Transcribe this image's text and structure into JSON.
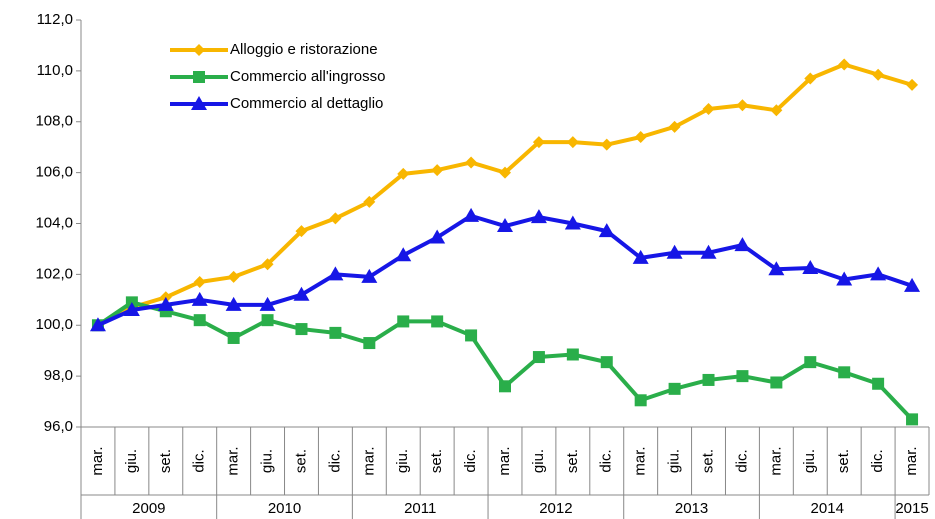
{
  "chart_data": {
    "type": "line",
    "categories": [
      "mar.",
      "giu.",
      "set.",
      "dic.",
      "mar.",
      "giu.",
      "set.",
      "dic.",
      "mar.",
      "giu.",
      "set.",
      "dic.",
      "mar.",
      "giu.",
      "set.",
      "dic.",
      "mar.",
      "giu.",
      "set.",
      "dic.",
      "mar.",
      "giu.",
      "set.",
      "dic.",
      "mar."
    ],
    "years": [
      "2009",
      "2009",
      "2009",
      "2009",
      "2010",
      "2010",
      "2010",
      "2010",
      "2011",
      "2011",
      "2011",
      "2011",
      "2012",
      "2012",
      "2012",
      "2012",
      "2013",
      "2013",
      "2013",
      "2013",
      "2014",
      "2014",
      "2014",
      "2014",
      "2015"
    ],
    "series": [
      {
        "name": "Alloggio e ristorazione",
        "color": "#f8b600",
        "marker": "diamond",
        "values": [
          100.0,
          100.7,
          101.1,
          101.7,
          101.9,
          102.4,
          103.7,
          104.2,
          104.85,
          105.95,
          106.1,
          106.4,
          106.0,
          107.2,
          107.2,
          107.1,
          107.4,
          107.8,
          108.5,
          108.65,
          108.45,
          109.7,
          110.25,
          109.85,
          109.45
        ]
      },
      {
        "name": "Commercio all'ingrosso",
        "color": "#2aae4a",
        "marker": "square",
        "values": [
          100.0,
          100.9,
          100.55,
          100.2,
          99.5,
          100.2,
          99.85,
          99.7,
          99.3,
          100.15,
          100.15,
          99.6,
          97.6,
          98.75,
          98.85,
          98.55,
          97.05,
          97.5,
          97.85,
          98.0,
          97.75,
          98.55,
          98.15,
          97.7,
          96.3
        ]
      },
      {
        "name": "Commercio al dettaglio",
        "color": "#1616e6",
        "marker": "triangle",
        "values": [
          100.0,
          100.6,
          100.8,
          101.0,
          100.8,
          100.8,
          101.2,
          102.0,
          101.9,
          102.75,
          103.45,
          104.3,
          103.9,
          104.25,
          104.0,
          103.7,
          102.65,
          102.85,
          102.85,
          103.15,
          102.2,
          102.25,
          101.8,
          102.0,
          101.55
        ]
      }
    ],
    "ylim": [
      96,
      112
    ],
    "yticks": [
      {
        "value": 96,
        "label": "96,0"
      },
      {
        "value": 98,
        "label": "98,0"
      },
      {
        "value": 100,
        "label": "100,0"
      },
      {
        "value": 102,
        "label": "102,0"
      },
      {
        "value": 104,
        "label": "104,0"
      },
      {
        "value": 106,
        "label": "106,0"
      },
      {
        "value": 108,
        "label": "108,0"
      },
      {
        "value": 110,
        "label": "110,0"
      },
      {
        "value": 112,
        "label": "112,0"
      }
    ],
    "legend": "top-left",
    "grid": false
  }
}
